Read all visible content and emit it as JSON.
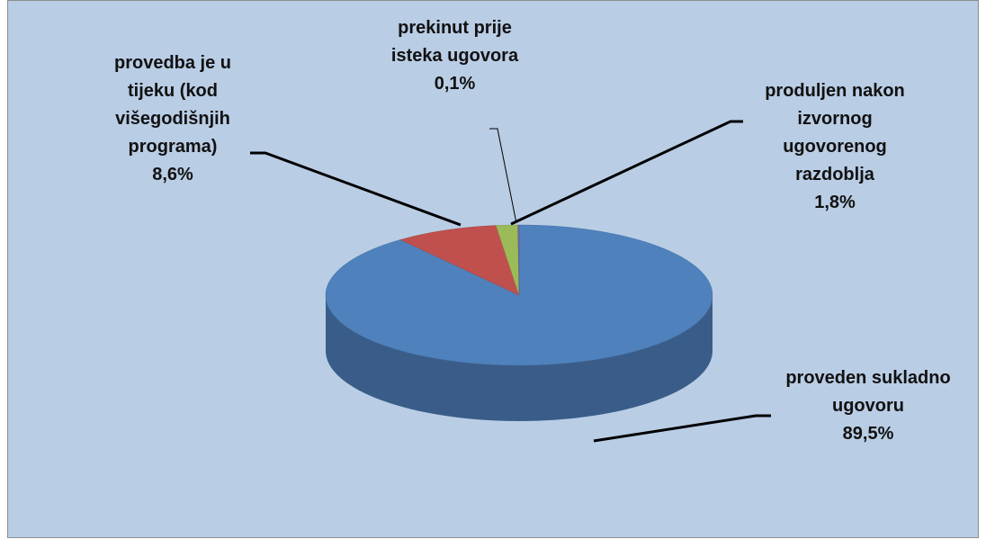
{
  "chart_data": {
    "type": "pie",
    "categories": [
      "proveden sukladno ugovoru",
      "provedba je u tijeku (kod višegodišnjih programa)",
      "produljen nakon izvornog ugovorenog razdoblja",
      "prekinut prije isteka ugovora"
    ],
    "values": [
      89.5,
      8.6,
      1.8,
      0.1
    ],
    "value_labels": [
      "89,5%",
      "8,6%",
      "1,8%",
      "0,1%"
    ],
    "colors": [
      "#4f81bd",
      "#c0504d",
      "#9bbb59",
      "#8064a2"
    ]
  }
}
